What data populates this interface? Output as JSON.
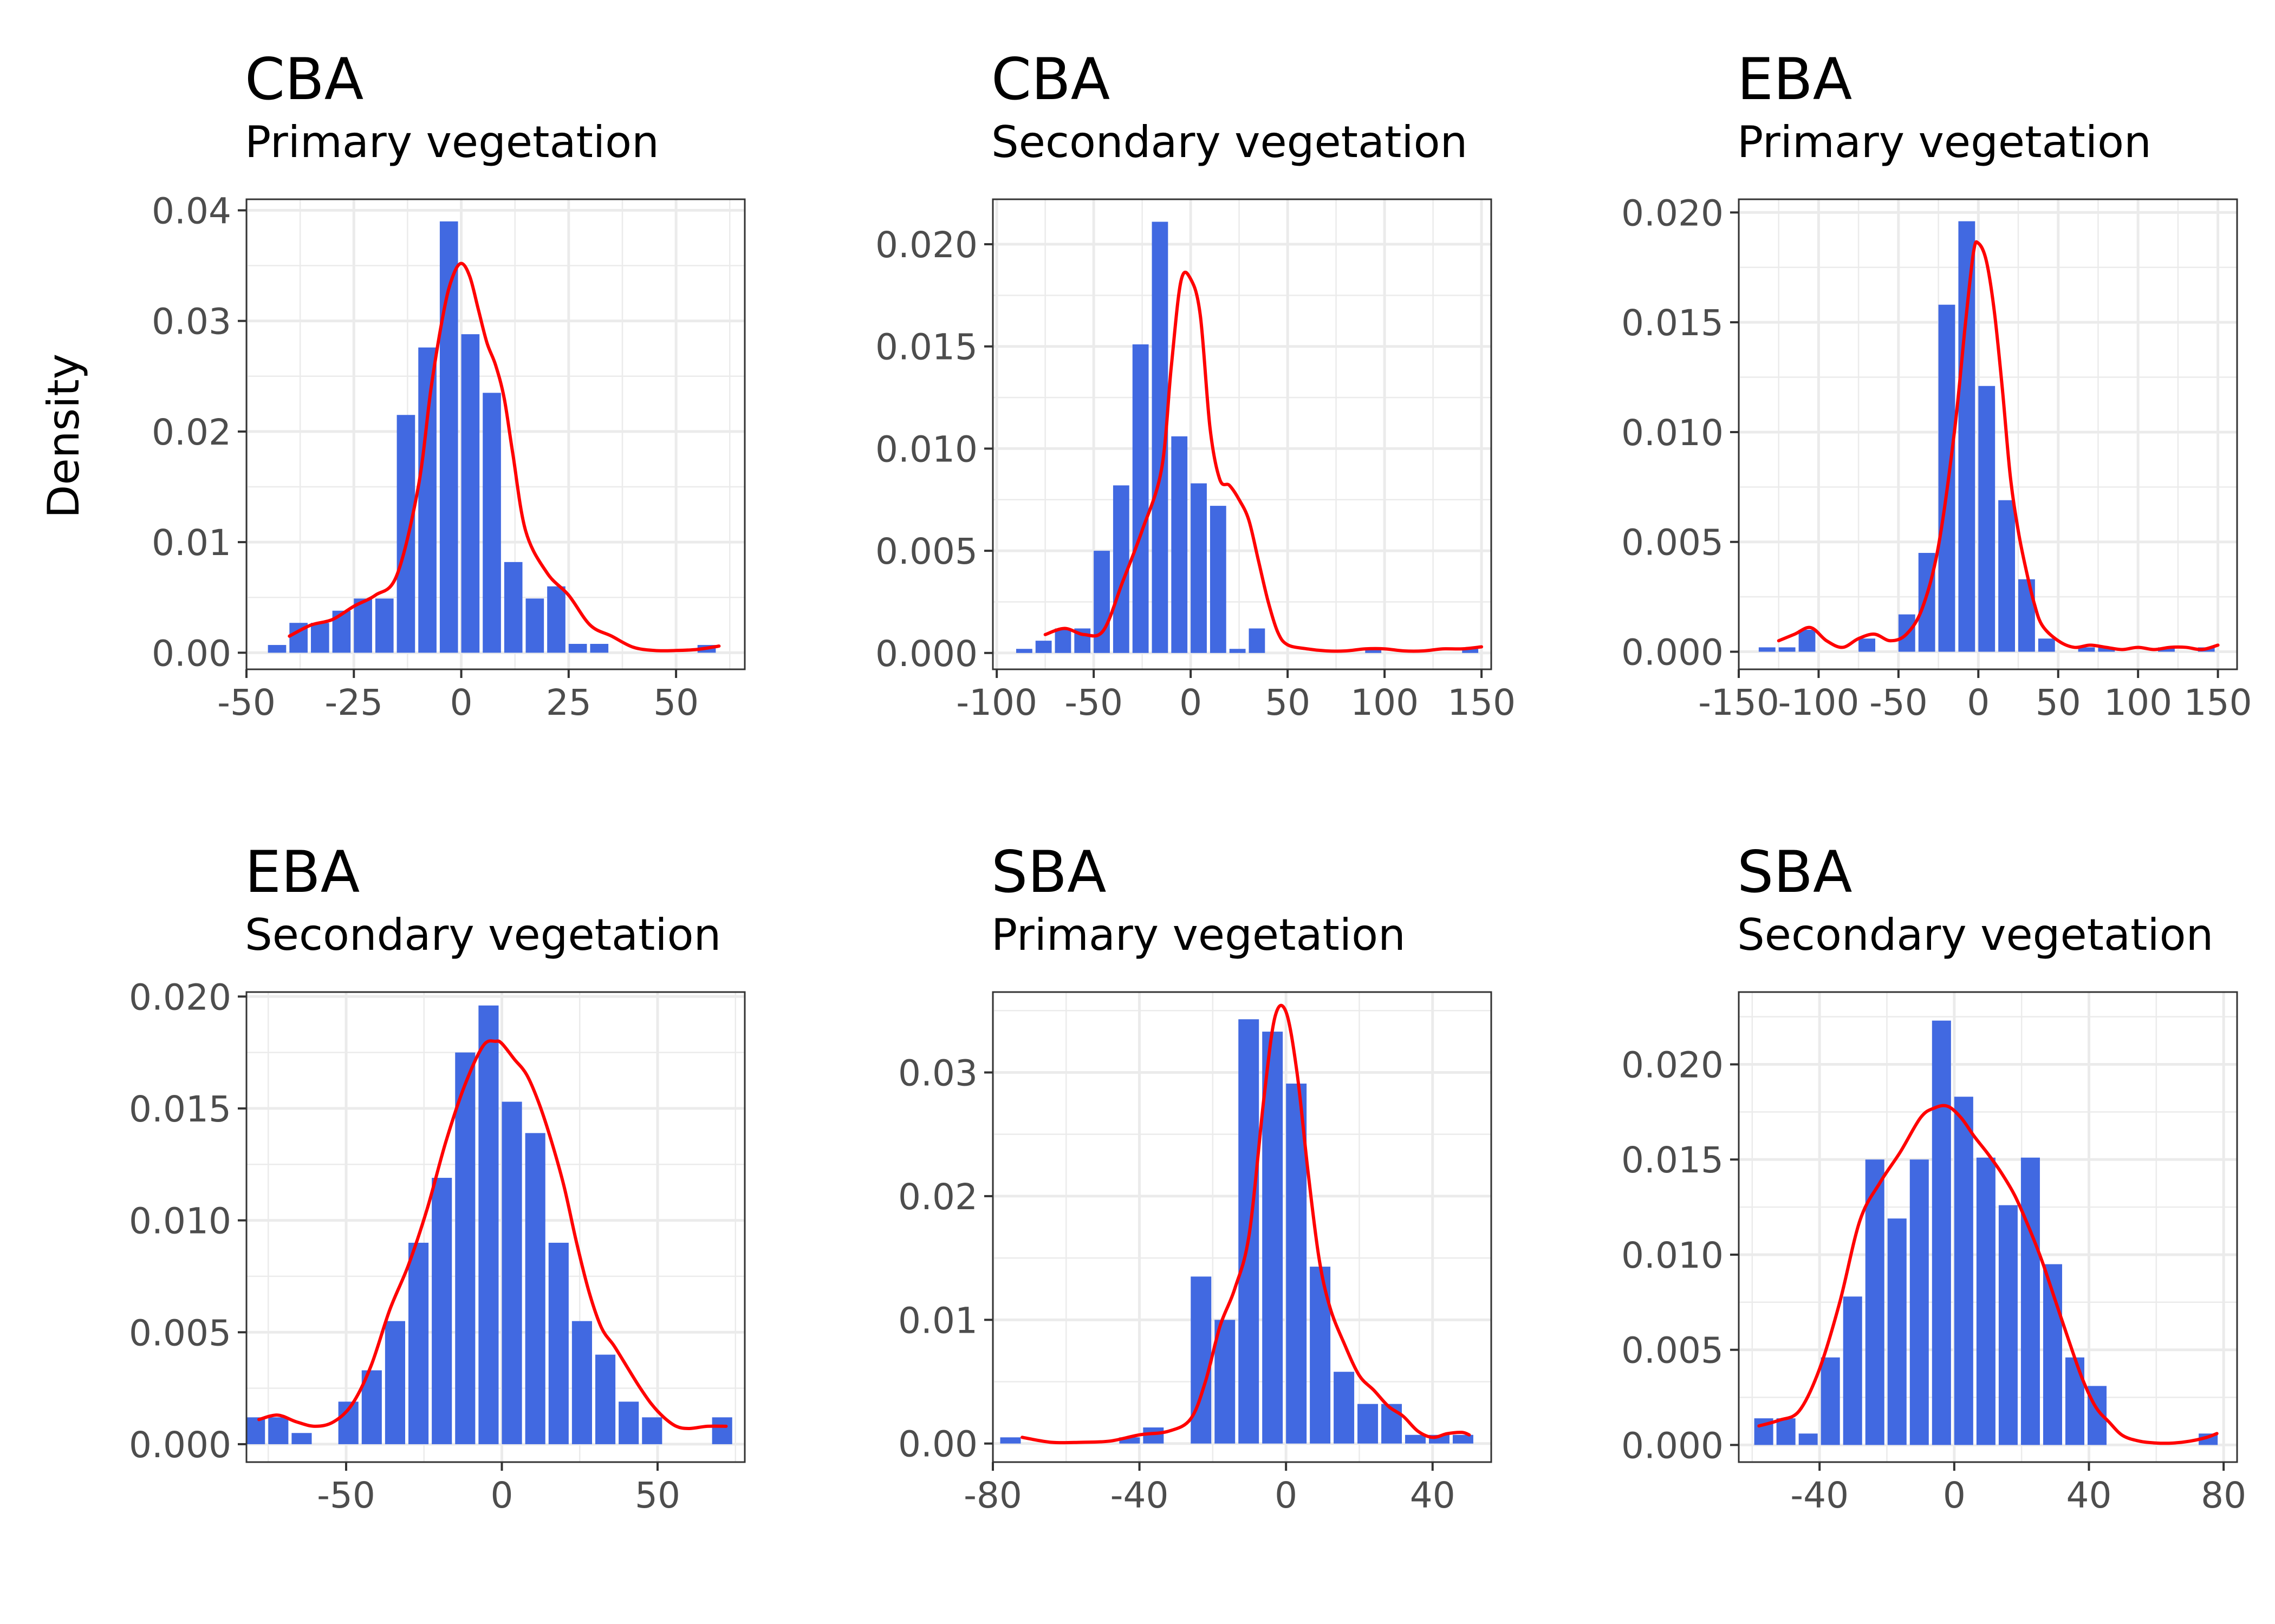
{
  "figure": {
    "ylabel": "Density",
    "bar_color": "#4169E1",
    "curve_color": "#FF0000",
    "grid_color": "#EBEBEB",
    "panel_border_color": "#333333",
    "tick_label_color": "#4D4D4D"
  },
  "chart_data": [
    {
      "type": "bar",
      "title": "CBA",
      "subtitle": "Primary vegetation",
      "ylabel": "Density",
      "xlabel": "",
      "xlim": [
        -50,
        66
      ],
      "ylim": [
        -0.0015,
        0.041
      ],
      "xticks": [
        -50,
        -25,
        0,
        25,
        50
      ],
      "xtick_labels": [
        "-50",
        "-25",
        "0",
        "25",
        "50"
      ],
      "yticks": [
        0,
        0.01,
        0.02,
        0.03,
        0.04
      ],
      "ytick_labels": [
        "0.00",
        "0.01",
        "0.02",
        "0.03",
        "0.04"
      ],
      "binwidth": 5,
      "bin_centers": [
        -42.5,
        -37.5,
        -32.5,
        -27.5,
        -22.5,
        -17.5,
        -12.5,
        -7.5,
        -2.5,
        2.5,
        7.5,
        12.5,
        17.5,
        22.5,
        27.5,
        32.5,
        37.5,
        42.5,
        47.5,
        52.5,
        57.5
      ],
      "values": [
        0.0007,
        0.0027,
        0.0027,
        0.0038,
        0.0049,
        0.0049,
        0.0215,
        0.0276,
        0.039,
        0.0288,
        0.0235,
        0.0082,
        0.0049,
        0.006,
        0.0008,
        0.0008,
        0,
        0,
        0,
        0,
        0.0007
      ],
      "density": {
        "x": [
          -40,
          -35,
          -30,
          -25,
          -20,
          -15,
          -10,
          -7,
          -4,
          -2,
          0,
          2,
          4,
          6,
          8,
          10,
          12,
          15,
          20,
          25,
          30,
          35,
          40,
          45,
          50,
          55,
          60
        ],
        "y": [
          0.0015,
          0.0025,
          0.003,
          0.0042,
          0.0052,
          0.007,
          0.015,
          0.024,
          0.031,
          0.034,
          0.0352,
          0.034,
          0.031,
          0.028,
          0.026,
          0.023,
          0.018,
          0.011,
          0.0072,
          0.0052,
          0.0025,
          0.0015,
          0.0005,
          0.0002,
          0.0002,
          0.0003,
          0.0006
        ]
      }
    },
    {
      "type": "bar",
      "title": "CBA",
      "subtitle": "Secondary vegetation",
      "ylabel": "",
      "xlabel": "",
      "xlim": [
        -102,
        155
      ],
      "ylim": [
        -0.0008,
        0.0222
      ],
      "xticks": [
        -100,
        -50,
        0,
        50,
        100,
        150
      ],
      "xtick_labels": [
        "-100",
        "-50",
        "0",
        "50",
        "100",
        "150"
      ],
      "yticks": [
        0,
        0.005,
        0.01,
        0.015,
        0.02
      ],
      "ytick_labels": [
        "0.000",
        "0.005",
        "0.010",
        "0.015",
        "0.020"
      ],
      "binwidth": 10,
      "bin_centers": [
        -85,
        -75,
        -65,
        -55,
        -45,
        -35,
        -25,
        -15,
        -5,
        5,
        15,
        25,
        35,
        45,
        55,
        65,
        75,
        85,
        95,
        105,
        115,
        125,
        135,
        145
      ],
      "values": [
        0.0002,
        0.0006,
        0.0012,
        0.0012,
        0.005,
        0.0082,
        0.0151,
        0.0211,
        0.0106,
        0.0083,
        0.0072,
        0.0002,
        0.0012,
        0,
        0,
        0,
        0,
        0,
        0.0002,
        0,
        0,
        0,
        0,
        0.0002
      ],
      "density": {
        "x": [
          -75,
          -65,
          -55,
          -45,
          -35,
          -25,
          -15,
          -10,
          -5,
          0,
          5,
          10,
          15,
          20,
          25,
          30,
          35,
          40,
          45,
          50,
          60,
          70,
          80,
          90,
          100,
          110,
          120,
          130,
          140,
          150
        ],
        "y": [
          0.0009,
          0.0012,
          0.0009,
          0.0011,
          0.0035,
          0.006,
          0.009,
          0.014,
          0.0182,
          0.0183,
          0.0165,
          0.011,
          0.0085,
          0.0082,
          0.0075,
          0.0065,
          0.0045,
          0.0025,
          0.001,
          0.0004,
          0.0002,
          0.0001,
          0.0001,
          0.0002,
          0.0002,
          0.0001,
          0.0001,
          0.0002,
          0.0002,
          0.0003
        ]
      }
    },
    {
      "type": "bar",
      "title": "EBA",
      "subtitle": "Primary vegetation",
      "ylabel": "",
      "xlabel": "",
      "xlim": [
        -150,
        162
      ],
      "ylim": [
        -0.0008,
        0.0206
      ],
      "xticks": [
        -150,
        -100,
        -50,
        0,
        50,
        100,
        150
      ],
      "xtick_labels": [
        "-150",
        "-100",
        "-50",
        "0",
        "50",
        "100",
        "150"
      ],
      "yticks": [
        0,
        0.005,
        0.01,
        0.015,
        0.02
      ],
      "ytick_labels": [
        "0.000",
        "0.005",
        "0.010",
        "0.015",
        "0.020"
      ],
      "binwidth": 12.5,
      "bin_centers": [
        -131.25,
        -118.75,
        -106.25,
        -93.75,
        -81.25,
        -68.75,
        -56.25,
        -43.75,
        -31.25,
        -18.75,
        -6.25,
        6.25,
        18.75,
        31.25,
        43.75,
        56.25,
        68.75,
        81.25,
        93.75,
        106.25,
        118.75,
        131.25,
        143.75
      ],
      "values": [
        0.0002,
        0.0002,
        0.001,
        0,
        0,
        0.0006,
        0,
        0.0017,
        0.0045,
        0.0158,
        0.0196,
        0.0121,
        0.0069,
        0.0033,
        0.0006,
        0,
        0.0002,
        0.0002,
        0,
        0,
        0.0002,
        0,
        0.0002
      ],
      "density": {
        "x": [
          -125,
          -115,
          -105,
          -95,
          -85,
          -75,
          -65,
          -55,
          -45,
          -35,
          -25,
          -15,
          -8,
          -3,
          0,
          5,
          10,
          15,
          20,
          25,
          30,
          35,
          40,
          50,
          60,
          70,
          80,
          90,
          100,
          110,
          120,
          130,
          140,
          150
        ],
        "y": [
          0.0005,
          0.0008,
          0.0011,
          0.0005,
          0.0002,
          0.0006,
          0.0008,
          0.0005,
          0.0008,
          0.002,
          0.0048,
          0.01,
          0.015,
          0.0182,
          0.0186,
          0.0178,
          0.0155,
          0.012,
          0.008,
          0.0055,
          0.0037,
          0.0022,
          0.0012,
          0.0005,
          0.0002,
          0.0003,
          0.0002,
          0.0001,
          0.0002,
          0.0001,
          0.0002,
          0.0002,
          0.0001,
          0.0003
        ]
      }
    },
    {
      "type": "bar",
      "title": "EBA",
      "subtitle": "Secondary vegetation",
      "ylabel": "",
      "xlabel": "",
      "xlim": [
        -82,
        78
      ],
      "ylim": [
        -0.0008,
        0.0202
      ],
      "xticks": [
        -50,
        0,
        50
      ],
      "xtick_labels": [
        "-50",
        "0",
        "50"
      ],
      "yticks": [
        0,
        0.005,
        0.01,
        0.015,
        0.02
      ],
      "ytick_labels": [
        "0.000",
        "0.005",
        "0.010",
        "0.015",
        "0.020"
      ],
      "binwidth": 7.5,
      "bin_centers": [
        -78.75,
        -71.25,
        -63.75,
        -56.25,
        -48.75,
        -41.25,
        -33.75,
        -26.25,
        -18.75,
        -11.25,
        -3.75,
        3.75,
        11.25,
        18.75,
        26.25,
        33.75,
        41.25,
        48.75,
        56.25,
        63.75,
        71.25
      ],
      "values": [
        0.0012,
        0.0012,
        0.0005,
        0,
        0.0019,
        0.0033,
        0.0055,
        0.009,
        0.0119,
        0.0175,
        0.0196,
        0.0153,
        0.0139,
        0.009,
        0.0055,
        0.004,
        0.0019,
        0.0012,
        0,
        0,
        0.0012
      ],
      "density": {
        "x": [
          -78,
          -72,
          -66,
          -60,
          -54,
          -48,
          -42,
          -36,
          -30,
          -24,
          -18,
          -12,
          -6,
          -2,
          0,
          4,
          8,
          12,
          16,
          20,
          24,
          28,
          32,
          36,
          40,
          44,
          48,
          52,
          56,
          60,
          66,
          72
        ],
        "y": [
          0.0011,
          0.0013,
          0.001,
          0.0008,
          0.001,
          0.0018,
          0.0035,
          0.006,
          0.008,
          0.0105,
          0.0135,
          0.016,
          0.0178,
          0.018,
          0.0179,
          0.0172,
          0.0165,
          0.0152,
          0.0135,
          0.0115,
          0.009,
          0.0068,
          0.0052,
          0.0044,
          0.0035,
          0.0026,
          0.0018,
          0.0012,
          0.0008,
          0.0007,
          0.0008,
          0.0008
        ]
      }
    },
    {
      "type": "bar",
      "title": "SBA",
      "subtitle": "Primary vegetation",
      "ylabel": "",
      "xlabel": "",
      "xlim": [
        -80,
        56
      ],
      "ylim": [
        -0.0015,
        0.0365
      ],
      "xticks": [
        -80,
        -40,
        0,
        40
      ],
      "xtick_labels": [
        "-80",
        "-40",
        "0",
        "40"
      ],
      "yticks": [
        0,
        0.01,
        0.02,
        0.03
      ],
      "ytick_labels": [
        "0.00",
        "0.01",
        "0.02",
        "0.03"
      ],
      "binwidth": 6.5,
      "bin_centers": [
        -74.75,
        -68.25,
        -61.75,
        -55.25,
        -48.75,
        -42.25,
        -35.75,
        -29.25,
        -22.75,
        -16.25,
        -9.75,
        -3.25,
        3.25,
        9.75,
        16.25,
        22.75,
        29.25,
        35.75,
        42.25,
        48.75
      ],
      "values": [
        0.0005,
        0,
        0,
        0,
        0,
        0.0005,
        0.0013,
        0,
        0.0135,
        0.01,
        0.0343,
        0.0333,
        0.0291,
        0.0143,
        0.0058,
        0.0032,
        0.0032,
        0.0007,
        0.0007,
        0.0007
      ],
      "density": {
        "x": [
          -72,
          -64,
          -56,
          -48,
          -40,
          -32,
          -26,
          -22,
          -18,
          -14,
          -10,
          -6,
          -3,
          0,
          3,
          6,
          9,
          12,
          16,
          20,
          24,
          28,
          32,
          36,
          40,
          44,
          48,
          50
        ],
        "y": [
          0.0005,
          0.0001,
          0.0001,
          0.0002,
          0.0007,
          0.001,
          0.002,
          0.005,
          0.0095,
          0.0125,
          0.017,
          0.028,
          0.0345,
          0.0349,
          0.03,
          0.022,
          0.015,
          0.011,
          0.008,
          0.0055,
          0.0043,
          0.003,
          0.0022,
          0.001,
          0.0005,
          0.0008,
          0.0009,
          0.0007
        ]
      }
    },
    {
      "type": "bar",
      "title": "SBA",
      "subtitle": "Secondary vegetation",
      "ylabel": "",
      "xlabel": "",
      "xlim": [
        -64,
        84
      ],
      "ylim": [
        -0.0009,
        0.0238
      ],
      "xticks": [
        -40,
        0,
        40,
        80
      ],
      "xtick_labels": [
        "-40",
        "0",
        "40",
        "80"
      ],
      "yticks": [
        0,
        0.005,
        0.01,
        0.015,
        0.02
      ],
      "ytick_labels": [
        "0.000",
        "0.005",
        "0.010",
        "0.015",
        "0.020"
      ],
      "binwidth": 6.6,
      "bin_centers": [
        -56.1,
        -49.5,
        -42.9,
        -36.3,
        -29.7,
        -23.1,
        -16.5,
        -9.9,
        -3.3,
        3.3,
        9.9,
        16.5,
        23.1,
        29.7,
        36.3,
        42.9,
        49.5,
        56.1,
        62.7,
        69.3,
        75.9
      ],
      "values": [
        0.0014,
        0.0014,
        0.0006,
        0.0046,
        0.0078,
        0.015,
        0.0119,
        0.015,
        0.0223,
        0.0183,
        0.0151,
        0.0126,
        0.0151,
        0.0095,
        0.0046,
        0.0031,
        0,
        0,
        0,
        0,
        0.0006
      ],
      "density": {
        "x": [
          -58,
          -52,
          -46,
          -40,
          -34,
          -28,
          -22,
          -16,
          -10,
          -6,
          -2,
          2,
          6,
          10,
          14,
          18,
          22,
          26,
          30,
          34,
          38,
          42,
          46,
          50,
          55,
          60,
          65,
          70,
          75,
          78
        ],
        "y": [
          0.001,
          0.0013,
          0.0018,
          0.004,
          0.0075,
          0.0118,
          0.0138,
          0.0154,
          0.0172,
          0.0177,
          0.0178,
          0.0172,
          0.0162,
          0.0153,
          0.0143,
          0.0131,
          0.0115,
          0.0097,
          0.0076,
          0.0055,
          0.0035,
          0.002,
          0.0012,
          0.0005,
          0.0002,
          0.0001,
          0.0001,
          0.0002,
          0.0004,
          0.0006
        ]
      }
    }
  ]
}
